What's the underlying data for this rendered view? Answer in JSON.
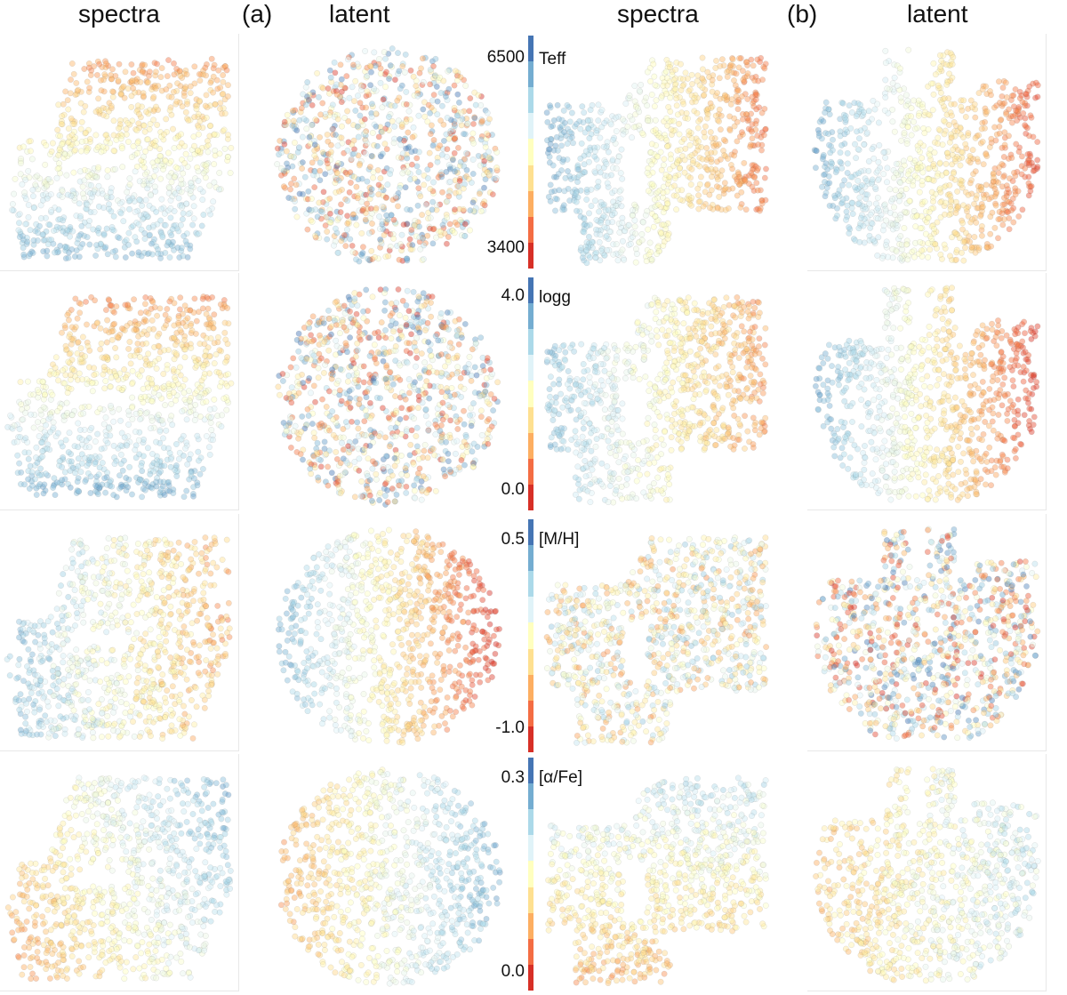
{
  "headers": {
    "a_spectra": "spectra",
    "a_tag": "(a)",
    "a_latent": "latent",
    "b_spectra": "spectra",
    "b_tag": "(b)",
    "b_latent": "latent"
  },
  "rows": [
    {
      "param": "Teff",
      "top": "6500",
      "bottom": "3400"
    },
    {
      "param": "logg",
      "top": "4.0",
      "bottom": "0.0"
    },
    {
      "param": "[M/H]",
      "top": "0.5",
      "bottom": "-1.0"
    },
    {
      "param": "[α/Fe]",
      "top": "0.3",
      "bottom": "0.0"
    }
  ],
  "colormap": [
    "#d73027",
    "#f46d43",
    "#fdae61",
    "#fee090",
    "#ffffbf",
    "#e0f3f8",
    "#abd9e9",
    "#74add1",
    "#4575b4"
  ],
  "chart_data": {
    "type": "scatter",
    "description_panels": [
      "row 1 Teff: (a) spectra, (a) latent, (b) spectra, (b) latent",
      "row 2 logg",
      "row 3 [M/H]",
      "row 4 [α/Fe]"
    ],
    "colorbar_ranges": {
      "Teff": [
        3400,
        6500
      ],
      "logg": [
        0.0,
        4.0
      ],
      "[M/H]": [
        -1.0,
        0.5
      ],
      "[α/Fe]": [
        0.0,
        0.3
      ]
    },
    "grid": false,
    "axes_visible": false
  }
}
